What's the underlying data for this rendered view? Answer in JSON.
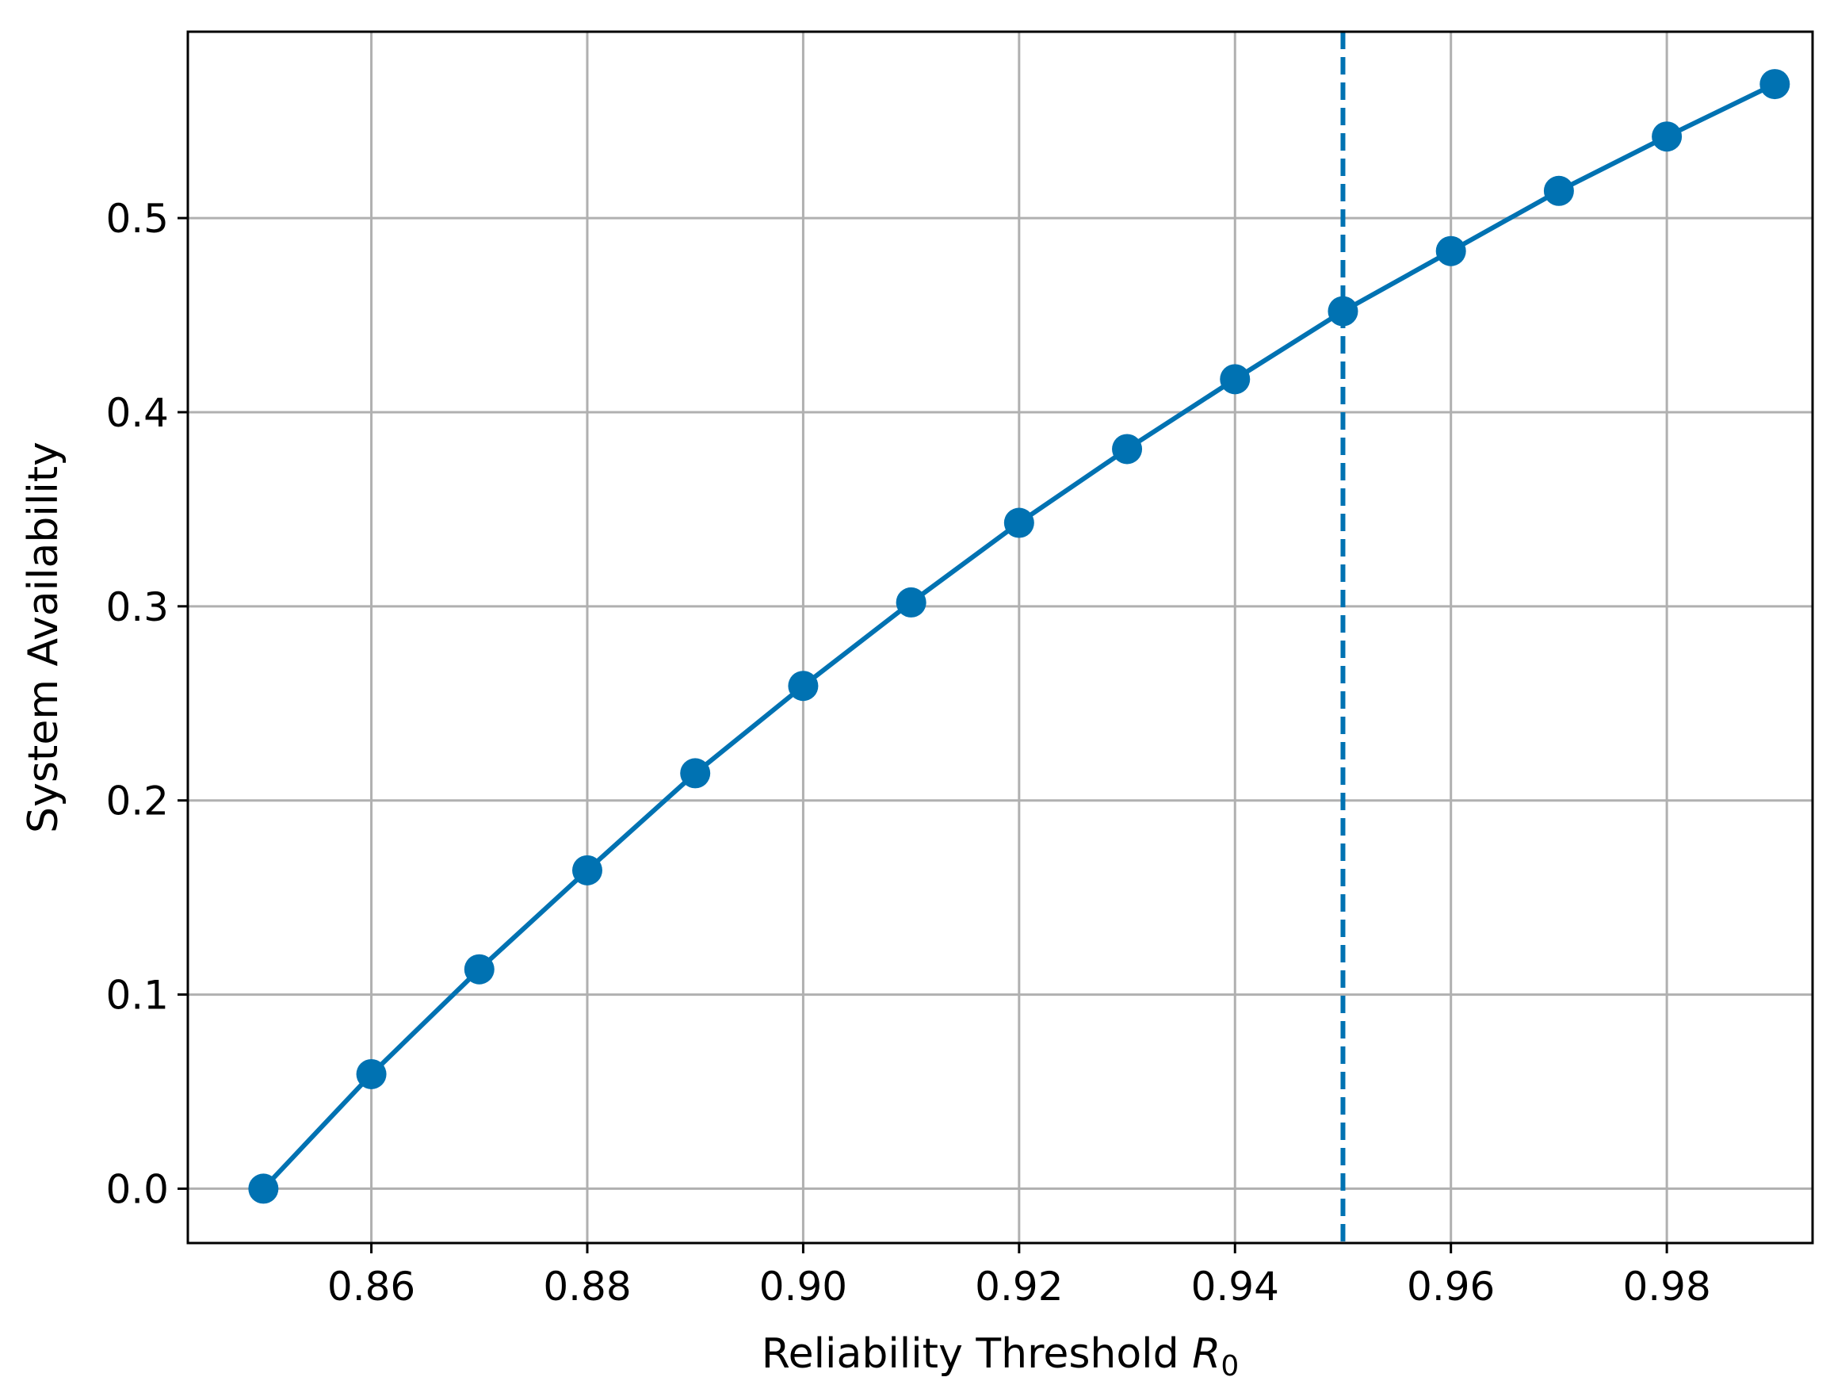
{
  "chart_data": {
    "type": "line",
    "title": "",
    "xlabel": "Reliability Threshold ",
    "xlabel_math": {
      "symbol": "R",
      "subscript": "0"
    },
    "ylabel": "System Availability",
    "xlim": [
      0.843,
      0.9935
    ],
    "ylim": [
      -0.028,
      0.596
    ],
    "x_ticks": [
      0.86,
      0.88,
      0.9,
      0.92,
      0.94,
      0.96,
      0.98
    ],
    "x_tick_labels": [
      "0.86",
      "0.88",
      "0.90",
      "0.92",
      "0.94",
      "0.96",
      "0.98"
    ],
    "y_ticks": [
      0.0,
      0.1,
      0.2,
      0.3,
      0.4,
      0.5
    ],
    "y_tick_labels": [
      "0.0",
      "0.1",
      "0.2",
      "0.3",
      "0.4",
      "0.5"
    ],
    "grid": true,
    "series": [
      {
        "x": [
          0.85,
          0.86,
          0.87,
          0.88,
          0.89,
          0.9,
          0.91,
          0.92,
          0.93,
          0.94,
          0.95,
          0.96,
          0.97,
          0.98,
          0.99
        ],
        "y": [
          0.0,
          0.059,
          0.113,
          0.164,
          0.214,
          0.259,
          0.302,
          0.343,
          0.381,
          0.417,
          0.452,
          0.483,
          0.514,
          0.542,
          0.569
        ],
        "color": "#0072b2",
        "marker": "circle"
      }
    ],
    "reference_lines": [
      {
        "orientation": "vertical",
        "x": 0.95,
        "style": "dashed",
        "color": "#0072b2"
      }
    ]
  }
}
